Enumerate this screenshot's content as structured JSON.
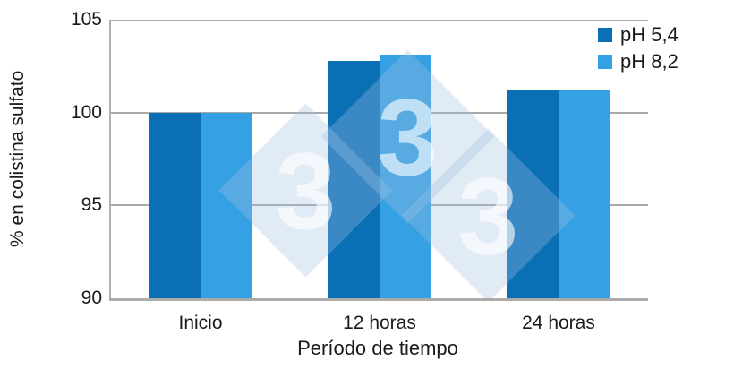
{
  "chart_data": {
    "type": "bar",
    "title": "",
    "categories": [
      "Inicio",
      "12 horas",
      "24 horas"
    ],
    "series": [
      {
        "name": "pH 5,4",
        "color": "#0a6fb5",
        "values": [
          100,
          102.8,
          101.2
        ]
      },
      {
        "name": "pH 8,2",
        "color": "#35a0e4",
        "values": [
          100,
          103.1,
          101.2
        ]
      }
    ],
    "xlabel": "Período de tiempo",
    "ylabel": "% en colistina sulfato",
    "ylim": [
      90,
      105
    ],
    "yticks": [
      90,
      95,
      100,
      105
    ],
    "grid": true,
    "legend_position": "top-right",
    "axis_color": "#b0b0b0",
    "gridline_color": "#a9a9a9",
    "background_color": "#ffffff"
  },
  "watermark": {
    "digit": "3"
  }
}
